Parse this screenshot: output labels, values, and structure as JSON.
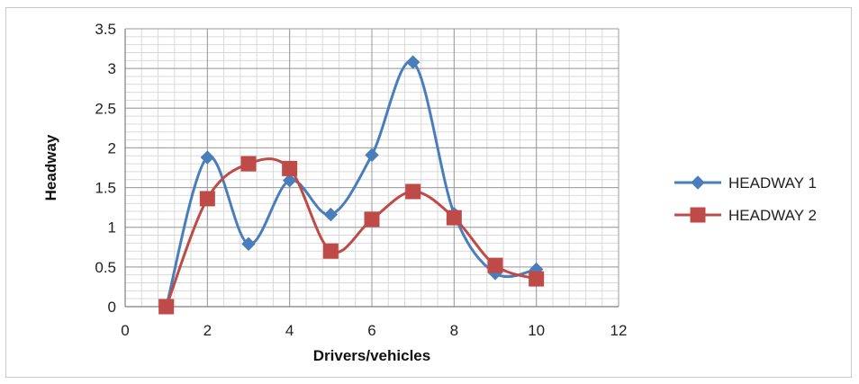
{
  "chart_data": {
    "type": "line",
    "smooth": true,
    "title": "",
    "xlabel": "Drivers/vehicles",
    "ylabel": "Headway",
    "xlim": [
      0,
      12
    ],
    "ylim": [
      0,
      3.5
    ],
    "x_ticks": [
      0,
      2,
      4,
      6,
      8,
      10,
      12
    ],
    "y_ticks": [
      0,
      0.5,
      1,
      1.5,
      2,
      2.5,
      3,
      3.5
    ],
    "grid": true,
    "legend_position": "right",
    "series": [
      {
        "name": "HEADWAY 1",
        "color": "#4a7ebb",
        "marker": "diamond",
        "x": [
          1,
          2,
          3,
          4,
          5,
          6,
          7,
          8,
          9,
          10
        ],
        "y": [
          0,
          1.88,
          0.79,
          1.59,
          1.16,
          1.91,
          3.08,
          1.17,
          0.42,
          0.47
        ]
      },
      {
        "name": "HEADWAY 2",
        "color": "#be4b48",
        "marker": "square",
        "x": [
          1,
          2,
          3,
          4,
          5,
          6,
          7,
          8,
          9,
          10
        ],
        "y": [
          0,
          1.36,
          1.8,
          1.74,
          0.7,
          1.1,
          1.45,
          1.12,
          0.52,
          0.35
        ]
      }
    ]
  }
}
